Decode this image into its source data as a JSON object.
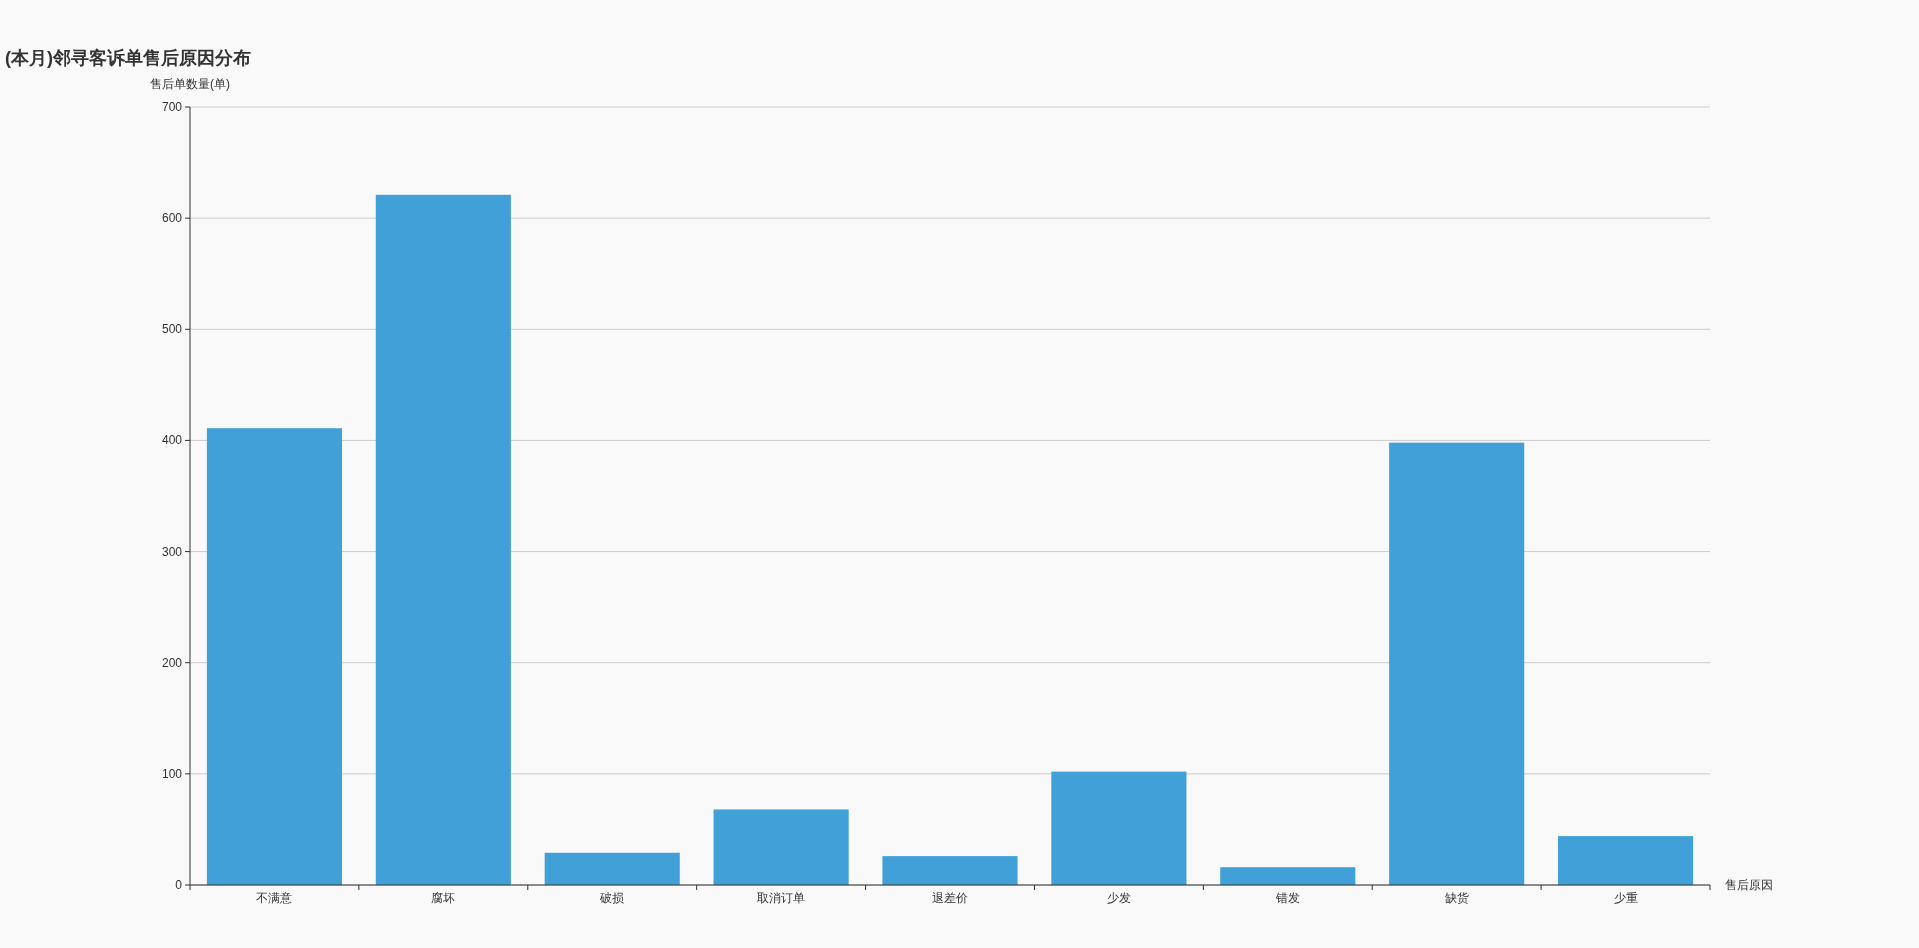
{
  "chart_data": {
    "type": "bar",
    "title": "(本月)邻寻客诉单售后原因分布",
    "xlabel": "售后原因",
    "ylabel": "售后单数量(单)",
    "categories": [
      "不满意",
      "腐坏",
      "破损",
      "取消订单",
      "退差价",
      "少发",
      "错发",
      "缺货",
      "少重"
    ],
    "values": [
      411,
      621,
      29,
      68,
      26,
      102,
      16,
      398,
      44
    ],
    "color": "#41a0d8",
    "ylim": [
      0,
      700
    ],
    "yticks": [
      0,
      100,
      200,
      300,
      400,
      500,
      600,
      700
    ],
    "grid": "y"
  }
}
